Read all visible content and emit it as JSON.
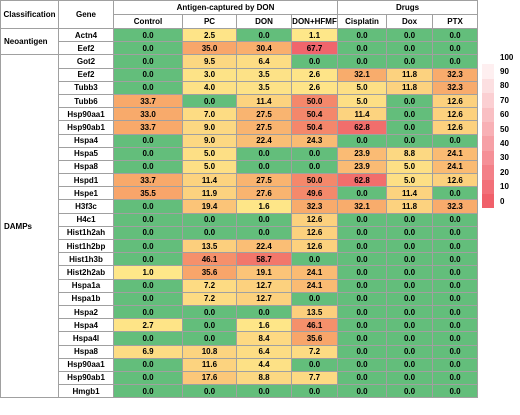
{
  "table": {
    "header_groups": [
      "Antigen-captured by DON",
      "Drugs"
    ],
    "columns": [
      "Classification",
      "Gene",
      "Control",
      "PC",
      "DON",
      "DON+HFMF",
      "Cisplatin",
      "Dox",
      "PTX"
    ],
    "sections": [
      {
        "classification": "Neoantigen",
        "rows": [
          {
            "gene": "Actn4",
            "values": [
              "0.0",
              "2.5",
              "0.0",
              "1.1",
              "0.0",
              "0.0",
              "0.0"
            ]
          },
          {
            "gene": "Eef2",
            "values": [
              "0.0",
              "35.0",
              "30.4",
              "67.7",
              "0.0",
              "0.0",
              "0.0"
            ]
          }
        ]
      },
      {
        "classification": "DAMPs",
        "rows": [
          {
            "gene": "Got2",
            "values": [
              "0.0",
              "9.5",
              "6.4",
              "0.0",
              "0.0",
              "0.0",
              "0.0"
            ]
          },
          {
            "gene": "Eef2",
            "values": [
              "0.0",
              "3.0",
              "3.5",
              "2.6",
              "32.1",
              "11.8",
              "32.3"
            ]
          },
          {
            "gene": "Tubb3",
            "values": [
              "0.0",
              "4.0",
              "3.5",
              "2.6",
              "5.0",
              "11.8",
              "32.3"
            ]
          },
          {
            "gene": "Tubb6",
            "values": [
              "33.7",
              "0.0",
              "11.4",
              "50.0",
              "5.0",
              "0.0",
              "12.6"
            ]
          },
          {
            "gene": "Hsp90aa1",
            "values": [
              "33.0",
              "7.0",
              "27.5",
              "50.4",
              "11.4",
              "0.0",
              "12.6"
            ]
          },
          {
            "gene": "Hsp90ab1",
            "values": [
              "33.7",
              "9.0",
              "27.5",
              "50.4",
              "62.8",
              "0.0",
              "12.6"
            ]
          },
          {
            "gene": "Hspa4",
            "values": [
              "0.0",
              "9.0",
              "22.4",
              "24.3",
              "0.0",
              "0.0",
              "0.0"
            ]
          },
          {
            "gene": "Hspa5",
            "values": [
              "0.0",
              "5.0",
              "0.0",
              "0.0",
              "23.9",
              "8.8",
              "24.1"
            ]
          },
          {
            "gene": "Hspa8",
            "values": [
              "0.0",
              "5.0",
              "0.0",
              "0.0",
              "23.9",
              "5.0",
              "24.1"
            ]
          },
          {
            "gene": "Hspd1",
            "values": [
              "33.7",
              "11.4",
              "27.5",
              "50.0",
              "62.8",
              "5.0",
              "12.6"
            ]
          },
          {
            "gene": "Hspe1",
            "values": [
              "35.5",
              "11.9",
              "27.6",
              "49.6",
              "0.0",
              "11.4",
              "0.0"
            ]
          },
          {
            "gene": "H3f3c",
            "values": [
              "0.0",
              "19.4",
              "1.6",
              "32.3",
              "32.1",
              "11.8",
              "32.3"
            ]
          },
          {
            "gene": "H4c1",
            "values": [
              "0.0",
              "0.0",
              "0.0",
              "12.6",
              "0.0",
              "0.0",
              "0.0"
            ]
          },
          {
            "gene": "Hist1h2ah",
            "values": [
              "0.0",
              "0.0",
              "0.0",
              "12.6",
              "0.0",
              "0.0",
              "0.0"
            ]
          },
          {
            "gene": "Hist1h2bp",
            "values": [
              "0.0",
              "13.5",
              "22.4",
              "12.6",
              "0.0",
              "0.0",
              "0.0"
            ]
          },
          {
            "gene": "Hist1h3b",
            "values": [
              "0.0",
              "46.1",
              "58.7",
              "0.0",
              "0.0",
              "0.0",
              "0.0"
            ]
          },
          {
            "gene": "Hist2h2ab",
            "values": [
              "1.0",
              "35.6",
              "19.1",
              "24.1",
              "0.0",
              "0.0",
              "0.0"
            ]
          },
          {
            "gene": "Hspa1a",
            "values": [
              "0.0",
              "7.2",
              "12.7",
              "24.1",
              "0.0",
              "0.0",
              "0.0"
            ]
          },
          {
            "gene": "Hspa1b",
            "values": [
              "0.0",
              "7.2",
              "12.7",
              "0.0",
              "0.0",
              "0.0",
              "0.0"
            ]
          },
          {
            "gene": "Hspa2",
            "values": [
              "0.0",
              "0.0",
              "0.0",
              "13.5",
              "0.0",
              "0.0",
              "0.0"
            ]
          },
          {
            "gene": "Hspa4",
            "values": [
              "2.7",
              "0.0",
              "1.6",
              "46.1",
              "0.0",
              "0.0",
              "0.0"
            ]
          },
          {
            "gene": "Hspa4l",
            "values": [
              "0.0",
              "0.0",
              "8.4",
              "35.6",
              "0.0",
              "0.0",
              "0.0"
            ]
          },
          {
            "gene": "Hspa8",
            "values": [
              "6.9",
              "10.8",
              "6.4",
              "7.2",
              "0.0",
              "0.0",
              "0.0"
            ]
          },
          {
            "gene": "Hsp90aa1",
            "values": [
              "0.0",
              "11.6",
              "4.4",
              "0.0",
              "0.0",
              "0.0",
              "0.0"
            ]
          },
          {
            "gene": "Hsp90ab1",
            "values": [
              "0.0",
              "17.6",
              "8.8",
              "7.7",
              "0.0",
              "0.0",
              "0.0"
            ]
          },
          {
            "gene": "Hmgb1",
            "values": [
              "0.0",
              "0.0",
              "0.0",
              "0.0",
              "0.0",
              "0.0",
              "0.0"
            ]
          }
        ]
      }
    ],
    "legend_ticks": [
      100,
      90,
      80,
      70,
      60,
      50,
      40,
      30,
      20,
      10,
      0
    ]
  }
}
